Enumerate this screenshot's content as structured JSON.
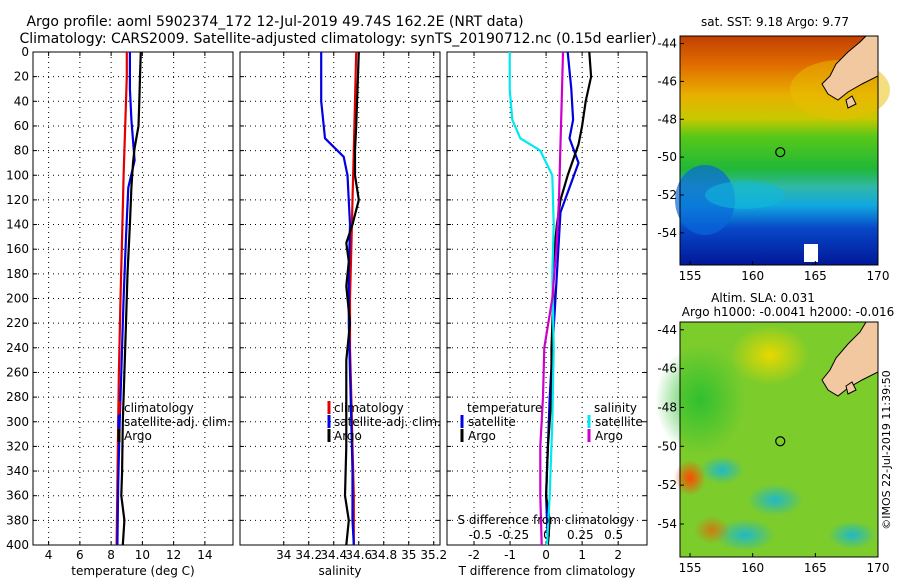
{
  "header": {
    "line1": "Argo profile: aoml 5902374_172 12-Jul-2019 49.74S 162.2E (NRT data)",
    "line2": "Climatology: CARS2009. Satellite-adjusted climatology: synTS_20190712.nc (0.15d earlier)"
  },
  "depth_ticks": [
    "0",
    "20",
    "40",
    "60",
    "80",
    "100",
    "120",
    "140",
    "160",
    "180",
    "200",
    "220",
    "240",
    "260",
    "280",
    "300",
    "320",
    "340",
    "360",
    "380",
    "400"
  ],
  "colors": {
    "climatology": "#e00000",
    "satellite": "#0000e0",
    "argo": "#000000",
    "satellite_s": "#00e8f0",
    "argo_s": "#cc00cc"
  },
  "chart_data": [
    {
      "id": "temperature",
      "type": "line",
      "xlabel": "temperature (deg C)",
      "ylabel": "depth",
      "xlim": [
        3,
        15.8
      ],
      "ylim": [
        400,
        0
      ],
      "xticks": [
        4,
        6,
        8,
        10,
        12,
        14
      ],
      "xticklabels": [
        "4",
        "6",
        "8",
        "10",
        "12",
        "14"
      ],
      "legend": [
        "climatology",
        "satellite-adj. clim.",
        "Argo"
      ],
      "series": [
        {
          "name": "climatology",
          "color": "#e00000",
          "points": [
            [
              9.0,
              0
            ],
            [
              9.0,
              20
            ],
            [
              8.9,
              60
            ],
            [
              8.8,
              100
            ],
            [
              8.7,
              150
            ],
            [
              8.6,
              200
            ],
            [
              8.5,
              260
            ],
            [
              8.45,
              300
            ],
            [
              8.4,
              350
            ],
            [
              8.35,
              400
            ]
          ]
        },
        {
          "name": "satellite-adj. clim.",
          "color": "#0000e0",
          "points": [
            [
              9.2,
              0
            ],
            [
              9.2,
              30
            ],
            [
              9.3,
              55
            ],
            [
              9.5,
              88
            ],
            [
              9.1,
              110
            ],
            [
              8.95,
              150
            ],
            [
              8.8,
              200
            ],
            [
              8.65,
              260
            ],
            [
              8.55,
              300
            ],
            [
              8.45,
              350
            ],
            [
              8.4,
              400
            ]
          ]
        },
        {
          "name": "Argo",
          "color": "#000000",
          "points": [
            [
              9.9,
              0
            ],
            [
              9.85,
              20
            ],
            [
              9.8,
              40
            ],
            [
              9.75,
              60
            ],
            [
              9.5,
              78
            ],
            [
              9.4,
              90
            ],
            [
              9.3,
              110
            ],
            [
              9.2,
              140
            ],
            [
              9.05,
              180
            ],
            [
              8.95,
              220
            ],
            [
              8.85,
              260
            ],
            [
              8.75,
              300
            ],
            [
              8.7,
              340
            ],
            [
              8.65,
              360
            ],
            [
              8.85,
              380
            ],
            [
              8.75,
              400
            ]
          ]
        }
      ]
    },
    {
      "id": "salinity",
      "type": "line",
      "xlabel": "salinity",
      "ylabel": "depth",
      "xlim": [
        33.65,
        35.25
      ],
      "ylim": [
        400,
        0
      ],
      "xticks": [
        34,
        34.2,
        34.4,
        34.6,
        34.8,
        35,
        35.2
      ],
      "xticklabels": [
        "34",
        "34.2",
        "34.4",
        "34.6",
        "34.8",
        "35",
        "35.2"
      ],
      "legend": [
        "climatology",
        "satellite-adj. clim.",
        "Argo"
      ],
      "series": [
        {
          "name": "climatology",
          "color": "#e00000",
          "points": [
            [
              34.58,
              0
            ],
            [
              34.57,
              40
            ],
            [
              34.56,
              80
            ],
            [
              34.55,
              120
            ],
            [
              34.54,
              160
            ],
            [
              34.53,
              200
            ],
            [
              34.53,
              240
            ],
            [
              34.54,
              280
            ],
            [
              34.55,
              320
            ],
            [
              34.56,
              360
            ],
            [
              34.56,
              400
            ]
          ]
        },
        {
          "name": "satellite-adj. clim.",
          "color": "#0000e0",
          "points": [
            [
              34.3,
              0
            ],
            [
              34.3,
              40
            ],
            [
              34.33,
              70
            ],
            [
              34.48,
              85
            ],
            [
              34.51,
              100
            ],
            [
              34.53,
              140
            ],
            [
              34.52,
              180
            ],
            [
              34.52,
              220
            ],
            [
              34.53,
              260
            ],
            [
              34.54,
              300
            ],
            [
              34.55,
              340
            ],
            [
              34.55,
              380
            ],
            [
              34.56,
              400
            ]
          ]
        },
        {
          "name": "Argo",
          "color": "#000000",
          "points": [
            [
              34.6,
              0
            ],
            [
              34.59,
              30
            ],
            [
              34.58,
              60
            ],
            [
              34.57,
              80
            ],
            [
              34.57,
              100
            ],
            [
              34.6,
              120
            ],
            [
              34.55,
              140
            ],
            [
              34.5,
              155
            ],
            [
              34.52,
              170
            ],
            [
              34.5,
              190
            ],
            [
              34.53,
              220
            ],
            [
              34.5,
              250
            ],
            [
              34.5,
              280
            ],
            [
              34.5,
              320
            ],
            [
              34.49,
              360
            ],
            [
              34.52,
              380
            ],
            [
              34.5,
              400
            ]
          ]
        }
      ]
    },
    {
      "id": "difference",
      "type": "line",
      "xlabel": "T difference from climatology",
      "xlabel2": "S difference from climatology",
      "ylabel": "depth",
      "xlim": [
        -2.75,
        2.8
      ],
      "ylim": [
        400,
        0
      ],
      "xticks": [
        -2,
        -1,
        0,
        1,
        2
      ],
      "xticklabels": [
        "-2",
        "-1",
        "0",
        "1",
        "2"
      ],
      "s_ticks": [
        -0.5,
        -0.25,
        0,
        0.25,
        0.5
      ],
      "s_ticklabels": [
        "-0.5",
        "-0.25",
        "0",
        "0.25",
        "0.5"
      ],
      "legend_temperature_title": "temperature",
      "legend_salinity_title": "salinity",
      "legend_temperature": [
        "satellite",
        "Argo"
      ],
      "legend_salinity": [
        "satellite",
        "Argo"
      ],
      "series": [
        {
          "name": "T satellite",
          "color": "#0000e0",
          "points": [
            [
              0.6,
              0
            ],
            [
              0.7,
              30
            ],
            [
              0.75,
              55
            ],
            [
              0.65,
              70
            ],
            [
              0.9,
              90
            ],
            [
              0.4,
              130
            ],
            [
              0.3,
              180
            ],
            [
              0.2,
              230
            ],
            [
              0.1,
              280
            ],
            [
              0.05,
              320
            ],
            [
              0.0,
              360
            ],
            [
              0.05,
              400
            ]
          ]
        },
        {
          "name": "T Argo",
          "color": "#000000",
          "points": [
            [
              1.2,
              0
            ],
            [
              1.25,
              20
            ],
            [
              1.1,
              40
            ],
            [
              1.0,
              60
            ],
            [
              0.9,
              75
            ],
            [
              0.6,
              100
            ],
            [
              0.4,
              120
            ],
            [
              0.3,
              140
            ],
            [
              0.2,
              170
            ],
            [
              0.2,
              200
            ],
            [
              0.15,
              240
            ],
            [
              0.15,
              280
            ],
            [
              0.05,
              320
            ],
            [
              0.0,
              360
            ],
            [
              0.1,
              380
            ],
            [
              0.05,
              400
            ]
          ]
        },
        {
          "name": "S satellite",
          "color": "#00e8f0",
          "points": [
            [
              -0.28,
              0
            ],
            [
              -0.28,
              30
            ],
            [
              -0.26,
              55
            ],
            [
              -0.2,
              70
            ],
            [
              -0.05,
              80
            ],
            [
              0.04,
              100
            ],
            [
              0.05,
              140
            ],
            [
              0.04,
              180
            ],
            [
              0.05,
              240
            ],
            [
              0.04,
              300
            ],
            [
              0.02,
              360
            ],
            [
              0.0,
              400
            ]
          ]
        },
        {
          "name": "S Argo",
          "color": "#cc00cc",
          "points": [
            [
              0.12,
              0
            ],
            [
              0.11,
              40
            ],
            [
              0.1,
              80
            ],
            [
              0.09,
              120
            ],
            [
              0.07,
              160
            ],
            [
              0.04,
              200
            ],
            [
              -0.02,
              240
            ],
            [
              -0.03,
              280
            ],
            [
              -0.05,
              320
            ],
            [
              -0.05,
              360
            ],
            [
              -0.04,
              400
            ]
          ]
        }
      ]
    }
  ],
  "maps": {
    "sst": {
      "title": "sat. SST: 9.18 Argo: 9.77",
      "lat_labels": [
        "-44",
        "-46",
        "-48",
        "-50",
        "-52",
        "-54"
      ],
      "lon_labels": [
        "155",
        "160",
        "165",
        "170"
      ],
      "marker_lon": 162.2,
      "marker_lat": -49.74
    },
    "sla": {
      "title_line1": "Altim. SLA: 0.031",
      "title_line2": "Argo h1000: -0.0041 h2000: -0.016",
      "lat_labels": [
        "-44",
        "-46",
        "-48",
        "-50",
        "-52",
        "-54"
      ],
      "lon_labels": [
        "155",
        "160",
        "165",
        "170"
      ],
      "marker_lon": 162.2,
      "marker_lat": -49.74
    }
  },
  "watermark": "©IMOS 22-Jul-2019 11:39:50"
}
